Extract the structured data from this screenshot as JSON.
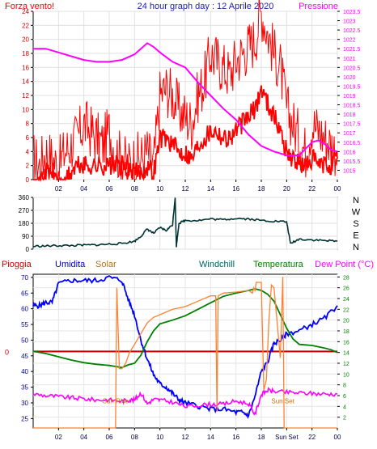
{
  "colors": {
    "wind": "#ff0000",
    "gust": "#ff0000",
    "pressure": "#ff00ff",
    "direction": "#003333",
    "humidity": "#0000ff",
    "temperature": "#008000",
    "dewpoint": "#ff00ff",
    "solar": "#ff8030",
    "rain": "#cc0000",
    "windchill": "#008000",
    "sunmark": "#cc7000"
  },
  "chart_data": [
    {
      "type": "line",
      "title": "24 hour graph day : 12 Aprile 2020",
      "left_label": "Forza vento!",
      "right_label": "Pressione",
      "x_ticks": [
        "02",
        "04",
        "06",
        "08",
        "10",
        "12",
        "14",
        "16",
        "18",
        "20",
        "22",
        "00"
      ],
      "y_left_ticks": [
        "0",
        "2",
        "4",
        "6",
        "8",
        "10",
        "12",
        "14",
        "16",
        "18",
        "20",
        "22",
        "24"
      ],
      "y_left_range": [
        0,
        24
      ],
      "y_right_ticks": [
        "1015",
        "1015.5",
        "1016",
        "1016.5",
        "1017",
        "1017.5",
        "1018",
        "1018.5",
        "1019",
        "1019.5",
        "1020",
        "1020.5",
        "1021",
        "1021.5",
        "1022",
        "1022.5",
        "1023",
        "1023.5"
      ],
      "y_right_range": [
        1014.5,
        1023.5
      ],
      "x_range": [
        0,
        24
      ],
      "grid": true,
      "series": [
        {
          "key": "gust",
          "axis": "left",
          "x": [
            0,
            0.5,
            1,
            1.5,
            2,
            2.5,
            3,
            3.5,
            4,
            4.5,
            5,
            5.5,
            6,
            6.5,
            7,
            7.5,
            8,
            8.5,
            9,
            9.5,
            10,
            10.5,
            11,
            11.5,
            12,
            12.5,
            13,
            13.5,
            14,
            14.5,
            15,
            15.5,
            16,
            16.5,
            17,
            17.5,
            18,
            18.5,
            19,
            19.5,
            20,
            20.5,
            21,
            21.5,
            22,
            22.5,
            23,
            23.5,
            24
          ],
          "y": [
            3,
            2,
            4,
            3,
            2,
            4,
            5,
            6,
            8,
            7,
            6,
            5,
            7,
            4,
            3,
            2,
            3,
            3,
            4,
            2,
            12,
            13,
            12,
            10,
            9,
            8,
            12,
            14,
            18,
            17,
            16,
            15,
            17,
            18,
            19,
            20,
            24,
            21,
            18,
            16,
            10,
            8,
            6,
            4,
            8,
            7,
            6,
            5,
            4
          ]
        },
        {
          "key": "wind",
          "axis": "left",
          "x": [
            0,
            0.5,
            1,
            1.5,
            2,
            2.5,
            3,
            3.5,
            4,
            4.5,
            5,
            5.5,
            6,
            6.5,
            7,
            7.5,
            8,
            8.5,
            9,
            9.5,
            10,
            10.5,
            11,
            11.5,
            12,
            12.5,
            13,
            13.5,
            14,
            14.5,
            15,
            15.5,
            16,
            16.5,
            17,
            17.5,
            18,
            18.5,
            19,
            19.5,
            20,
            20.5,
            21,
            21.5,
            22,
            22.5,
            23,
            23.5,
            24
          ],
          "y": [
            0,
            0,
            1,
            1,
            0,
            0,
            1,
            2,
            2,
            2,
            2,
            2,
            2,
            2,
            2,
            1,
            1,
            1,
            2,
            1,
            6,
            6,
            5,
            4,
            4,
            3,
            5,
            6,
            7,
            7,
            6,
            6,
            7,
            8,
            9,
            10,
            13,
            11,
            9,
            7,
            4,
            3,
            2,
            2,
            3,
            2,
            2,
            2,
            3
          ]
        },
        {
          "key": "pressure",
          "axis": "right",
          "x": [
            0,
            1,
            2,
            3,
            4,
            5,
            6,
            7,
            8,
            8.5,
            9,
            9.5,
            10,
            11,
            12,
            13,
            14,
            15,
            16,
            17,
            18,
            19,
            20,
            21,
            22,
            22.5,
            23,
            23.5,
            24
          ],
          "y": [
            1021.5,
            1021.5,
            1021.3,
            1021.1,
            1020.9,
            1020.8,
            1020.8,
            1020.9,
            1021.2,
            1021.5,
            1021.8,
            1021.6,
            1021.3,
            1020.8,
            1020.5,
            1019.7,
            1019,
            1018.3,
            1017.7,
            1016.9,
            1016.3,
            1016,
            1015.8,
            1015.8,
            1016.5,
            1016.6,
            1016.4,
            1016.1,
            1016
          ]
        }
      ]
    },
    {
      "type": "line",
      "y_ticks": [
        "0",
        "90",
        "180",
        "270",
        "360"
      ],
      "y_range": [
        0,
        360
      ],
      "compass": [
        "N",
        "W",
        "S",
        "E",
        "N"
      ],
      "x_range": [
        0,
        24
      ],
      "grid": true,
      "series": [
        {
          "key": "direction",
          "x": [
            0,
            1,
            2,
            3,
            4,
            5,
            6,
            7,
            8,
            8.5,
            9,
            9.5,
            10,
            10.5,
            11,
            11.2,
            11.3,
            11.5,
            12,
            13,
            14,
            15,
            16,
            17,
            18,
            19,
            20,
            20.3,
            21,
            22,
            23,
            24
          ],
          "y": [
            20,
            22,
            25,
            25,
            28,
            30,
            35,
            40,
            55,
            90,
            140,
            110,
            150,
            130,
            170,
            360,
            20,
            180,
            200,
            200,
            210,
            205,
            215,
            210,
            200,
            195,
            190,
            40,
            70,
            65,
            60,
            55
          ]
        }
      ]
    },
    {
      "type": "line",
      "labels": {
        "rain": "Pioggia",
        "humidity": "Umidita",
        "solar": "Solar",
        "windchill": "Windchill",
        "temperature": "Temperatura",
        "dewpoint": "Dew Point (°C)"
      },
      "rain_marker": "0",
      "y_left_ticks": [
        "25",
        "30",
        "35",
        "40",
        "45",
        "50",
        "55",
        "60",
        "65",
        "70"
      ],
      "y_left_range": [
        22,
        71
      ],
      "y_right_ticks": [
        "2",
        "4",
        "6",
        "8",
        "10",
        "12",
        "14",
        "16",
        "18",
        "20",
        "22",
        "24",
        "26",
        "28"
      ],
      "y_right_range": [
        0,
        28.5
      ],
      "x_ticks": [
        "02",
        "04",
        "06",
        "08",
        "10",
        "12",
        "14",
        "16",
        "18",
        "Sun Set",
        "22",
        "00"
      ],
      "x_range": [
        0,
        24
      ],
      "sun_labels": [
        "Sun Rise",
        "Sun Set"
      ],
      "grid": true,
      "series": [
        {
          "key": "humidity",
          "axis": "left",
          "x": [
            0,
            0.5,
            1,
            1.5,
            2,
            3,
            4,
            5,
            6,
            7,
            7.5,
            8,
            8.5,
            9,
            9.5,
            10,
            10.5,
            11,
            11.5,
            12,
            13,
            14,
            15,
            16,
            16.5,
            17,
            17.5,
            18,
            18.5,
            19,
            19.5,
            20,
            21,
            22,
            23,
            24
          ],
          "y": [
            61,
            61,
            62,
            62,
            68,
            69,
            69,
            69,
            70,
            69,
            63,
            58,
            50,
            44,
            39,
            36,
            35,
            33,
            31,
            30,
            29,
            28,
            28,
            27,
            27,
            26,
            32,
            40,
            43,
            49,
            50,
            52,
            53,
            55,
            57,
            61
          ]
        },
        {
          "key": "temperature",
          "axis": "right",
          "x": [
            0,
            1,
            2,
            3,
            4,
            5,
            6,
            6.5,
            7,
            7.5,
            8,
            8.5,
            9,
            9.5,
            10,
            11,
            12,
            13,
            14,
            15,
            16,
            17,
            17.5,
            18,
            18.5,
            19,
            19.5,
            20,
            20.5,
            21,
            22,
            23,
            23.5,
            24
          ],
          "y": [
            14.2,
            13.8,
            13.2,
            12.6,
            12.1,
            11.8,
            11.6,
            11.4,
            11.2,
            11.7,
            12,
            13.5,
            16,
            18,
            19.3,
            20,
            20.8,
            22,
            23.2,
            24.4,
            25,
            25.5,
            25.8,
            25.5,
            24.8,
            23.5,
            21,
            18.5,
            16.5,
            15.5,
            15.3,
            14.8,
            14.5,
            14
          ]
        },
        {
          "key": "dewpoint",
          "axis": "right",
          "x": [
            0,
            1,
            2,
            3,
            4,
            5,
            6,
            7,
            7.5,
            8,
            8.5,
            9,
            9.5,
            10,
            11,
            12,
            13,
            14,
            15,
            16,
            17,
            17.5,
            18,
            18.5,
            19,
            20,
            21,
            22,
            23,
            24
          ],
          "y": [
            6.3,
            6,
            5.8,
            5.6,
            5.4,
            5.2,
            5.2,
            5,
            5.2,
            5.2,
            6.5,
            4.5,
            5.3,
            5.2,
            4.8,
            4,
            4.2,
            4.4,
            4.4,
            5,
            4.5,
            2.5,
            6.2,
            7,
            6.8,
            6.6,
            6.5,
            6.4,
            6.3,
            6.3
          ]
        },
        {
          "key": "solar",
          "axis": "right",
          "x": [
            0,
            6.5,
            6.6,
            6.8,
            7,
            7.3,
            7.6,
            8,
            8.5,
            9,
            9.5,
            10,
            11,
            12,
            13,
            14,
            14.4,
            14.5,
            14.6,
            15,
            16,
            17,
            17.3,
            17.4,
            17.5,
            17.6,
            18,
            18.2,
            18.4,
            18.6,
            18.8,
            19,
            19.5,
            19.7,
            19.8,
            24
          ],
          "y": [
            0,
            0,
            26,
            11,
            11,
            12,
            14,
            15.5,
            17.5,
            19.5,
            20.5,
            21,
            22,
            22.5,
            23.5,
            24.5,
            24.5,
            3,
            24.5,
            25,
            25.2,
            25.5,
            25,
            26,
            25.5,
            27,
            27,
            7,
            9,
            20,
            26.5,
            26,
            13,
            28,
            0,
            0
          ]
        }
      ]
    }
  ]
}
